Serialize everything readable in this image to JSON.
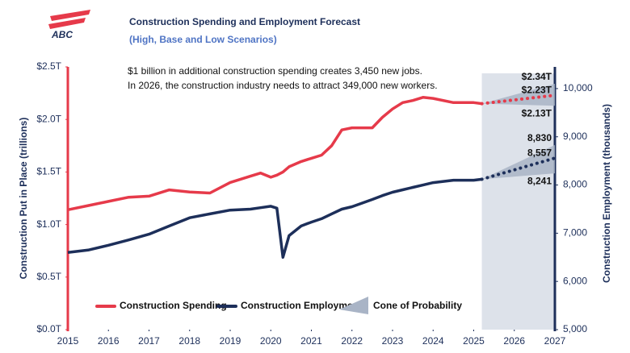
{
  "chart_data": {
    "type": "line",
    "logo": "ABC",
    "title": "Construction Spending and Employment Forecast",
    "subtitle": "(High, Base and Low Scenarios)",
    "annotations": [
      "$1 billion in additional construction spending creates 3,450 new jobs.",
      "In 2026, the construction industry needs to attract 349,000 new workers."
    ],
    "y_label": "Construction Put in Place (trillions)",
    "y2_label": "Construction Employment (thousands)",
    "xlim": [
      2015,
      2027
    ],
    "xticks": [
      2015,
      2016,
      2017,
      2018,
      2019,
      2020,
      2021,
      2022,
      2023,
      2024,
      2025,
      2026,
      2027
    ],
    "ylim": [
      0,
      2.5
    ],
    "yticks": [
      {
        "value": 0,
        "label": "$0.0T"
      },
      {
        "value": 0.5,
        "label": "$0.5T"
      },
      {
        "value": 1,
        "label": "$1.0T"
      },
      {
        "value": 1.5,
        "label": "$1.5T"
      },
      {
        "value": 2,
        "label": "$2.0T"
      },
      {
        "value": 2.5,
        "label": "$2.5T"
      }
    ],
    "y2lim": [
      5000,
      10450
    ],
    "y2ticks": [
      {
        "value": 5000,
        "label": "5,000"
      },
      {
        "value": 6000,
        "label": "6,000"
      },
      {
        "value": 7000,
        "label": "7,000"
      },
      {
        "value": 8000,
        "label": "8,000"
      },
      {
        "value": 9000,
        "label": "9,000"
      },
      {
        "value": 10000,
        "label": "10,000"
      }
    ],
    "x": [
      2015,
      2015.5,
      2016,
      2016.5,
      2017,
      2017.5,
      2018,
      2018.5,
      2019,
      2019.5,
      2019.75,
      2020,
      2020.15,
      2020.3,
      2020.45,
      2020.75,
      2021,
      2021.25,
      2021.5,
      2021.75,
      2022,
      2022.5,
      2022.75,
      2023,
      2023.25,
      2023.5,
      2023.75,
      2024,
      2024.5,
      2025,
      2025.2
    ],
    "series": [
      {
        "name": "Construction Spending",
        "color": "#e63a4a",
        "values": [
          1.14,
          1.18,
          1.22,
          1.26,
          1.27,
          1.33,
          1.31,
          1.3,
          1.4,
          1.46,
          1.49,
          1.45,
          1.47,
          1.5,
          1.55,
          1.6,
          1.63,
          1.66,
          1.75,
          1.9,
          1.92,
          1.92,
          2.02,
          2.1,
          2.16,
          2.18,
          2.21,
          2.2,
          2.16,
          2.16,
          2.15
        ],
        "forecast": {
          "x": [
            2025.2,
            2027
          ],
          "values": [
            2.15,
            2.23
          ],
          "high": [
            2.15,
            2.34
          ],
          "low": [
            2.15,
            2.13
          ],
          "value_labels": [
            null,
            "$2.23T"
          ],
          "high_labels": [
            null,
            "$2.34T"
          ],
          "low_labels": [
            null,
            "$2.13T"
          ]
        }
      },
      {
        "name": "Construction Employment",
        "color": "#1d2f5a",
        "axis": "y2",
        "values": [
          6600,
          6650,
          6750,
          6860,
          6980,
          7150,
          7320,
          7400,
          7480,
          7500,
          7530,
          7560,
          7520,
          6500,
          6950,
          7150,
          7230,
          7300,
          7400,
          7500,
          7550,
          7700,
          7780,
          7850,
          7900,
          7950,
          8000,
          8050,
          8100,
          8100,
          8120
        ],
        "forecast": {
          "x": [
            2025.2,
            2027
          ],
          "values": [
            8120,
            8557
          ],
          "high": [
            8120,
            8830
          ],
          "low": [
            8120,
            8241
          ],
          "value_labels": [
            null,
            "8,557"
          ],
          "high_labels": [
            null,
            "8,830"
          ],
          "low_labels": [
            null,
            "8,241"
          ]
        }
      }
    ],
    "cone": {
      "name": "Cone of Probability",
      "color": "#a9b4c6"
    },
    "forecast_region_color": "#dde2ea"
  }
}
